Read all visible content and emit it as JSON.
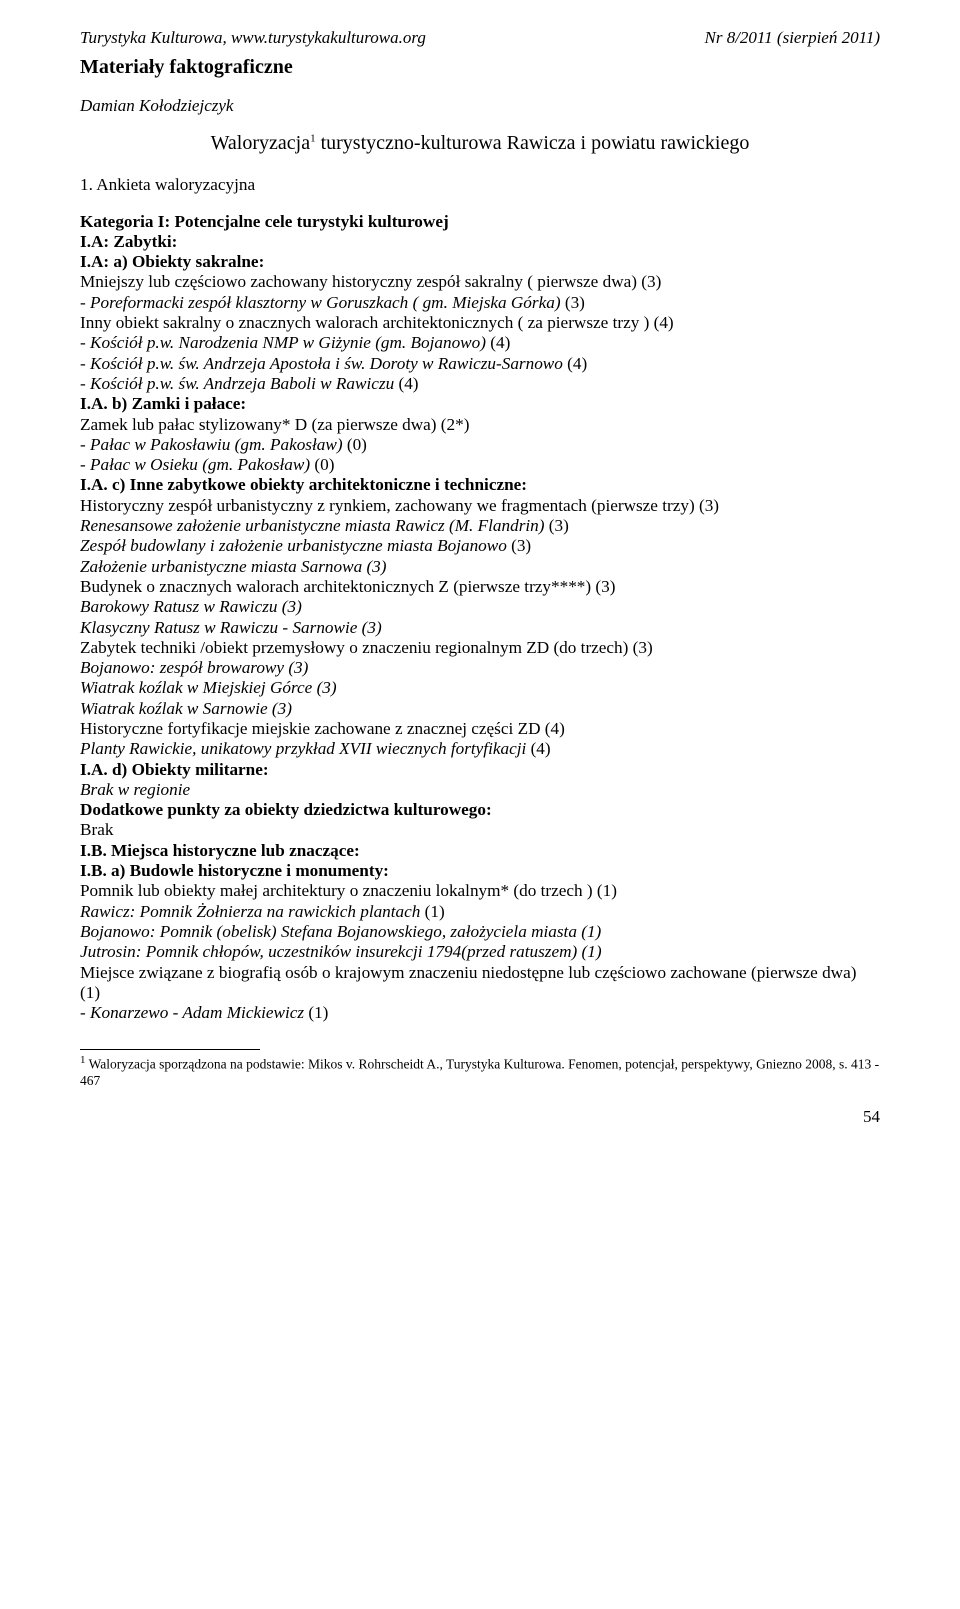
{
  "header": {
    "left": "Turystyka Kulturowa, www.turystykakulturowa.org",
    "right": "Nr 8/2011 (sierpień 2011)"
  },
  "section_title": "Materiały faktograficzne",
  "author": "Damian Kołodziejczyk",
  "main_title_a": "Waloryzacja",
  "main_title_sup": "1",
  "main_title_b": " turystyczno-kulturowa Rawicza i powiatu rawickiego",
  "survey_heading": "1. Ankieta waloryzacyjna",
  "lines": [
    {
      "t": "Kategoria I: Potencjalne cele turystyki kulturowej",
      "b": true
    },
    {
      "t": "I.A: Zabytki:",
      "b": true
    },
    {
      "t": "I.A: a) Obiekty sakralne:",
      "b": true
    },
    {
      "t": "Mniejszy lub częściowo zachowany historyczny zespół sakralny ( pierwsze dwa) (3)"
    },
    {
      "t": "- Poreformacki zespół klasztorny w Goruszkach ( gm. Miejska Górka) ",
      "i": true,
      "sfx": "(3)"
    },
    {
      "t": "Inny obiekt sakralny o znacznych walorach architektonicznych ( za pierwsze trzy ) (4)"
    },
    {
      "t": "- Kościół p.w. Narodzenia NMP w Giżynie (gm. Bojanowo) ",
      "i": true,
      "sfx": "(4)"
    },
    {
      "t": "- Kościół p.w. św. Andrzeja Apostoła i św. Doroty w Rawiczu-Sarnowo ",
      "i": true,
      "sfx": "(4)"
    },
    {
      "t": "- Kościół p.w. św. Andrzeja Baboli w Rawiczu ",
      "i": true,
      "sfx": "(4)"
    },
    {
      "t": "I.A. b) Zamki i pałace:",
      "b": true
    },
    {
      "t": "Zamek lub pałac stylizowany* D (za pierwsze dwa) (2*)"
    },
    {
      "t": "- Pałac w Pakosławiu (gm. Pakosław) ",
      "i": true,
      "sfx": "(0)"
    },
    {
      "t": "- Pałac w Osieku (gm. Pakosław) ",
      "i": true,
      "sfx": "(0)"
    },
    {
      "t": "I.A. c) Inne zabytkowe obiekty architektoniczne i techniczne:",
      "b": true
    },
    {
      "t": "Historyczny zespół urbanistyczny z rynkiem, zachowany we fragmentach (pierwsze trzy) (3)"
    },
    {
      "t": "Renesansowe założenie urbanistyczne miasta Rawicz (M. Flandrin) ",
      "i": true,
      "sfx": "(3)"
    },
    {
      "t": "Zespół budowlany i założenie urbanistyczne miasta Bojanowo ",
      "i": true,
      "sfx": "(3)"
    },
    {
      "t": "Założenie urbanistyczne miasta Sarnowa (3)",
      "i": true
    },
    {
      "t": "Budynek o znacznych walorach architektonicznych Z (pierwsze trzy****) (3)"
    },
    {
      "t": "Barokowy Ratusz w Rawiczu (3)",
      "i": true
    },
    {
      "t": "Klasyczny Ratusz w Rawiczu - Sarnowie (3)",
      "i": true
    },
    {
      "t": "Zabytek techniki /obiekt przemysłowy o znaczeniu regionalnym ZD (do trzech) (3)"
    },
    {
      "t": "Bojanowo: zespół browarowy (3)",
      "i": true
    },
    {
      "t": "Wiatrak koźlak w Miejskiej Górce (3)",
      "i": true
    },
    {
      "t": "Wiatrak koźlak w Sarnowie (3)",
      "i": true
    },
    {
      "t": "Historyczne fortyfikacje miejskie zachowane z znacznej części ZD (4)"
    },
    {
      "t": "Planty Rawickie, unikatowy przykład XVII wiecznych fortyfikacji ",
      "i": true,
      "sfx": "(4)"
    },
    {
      "t": "I.A. d) Obiekty militarne:",
      "b": true
    },
    {
      "t": "Brak w regionie",
      "i": true
    },
    {
      "t": "Dodatkowe punkty za obiekty dziedzictwa kulturowego:",
      "b": true
    },
    {
      "t": "Brak"
    },
    {
      "t": "I.B. Miejsca historyczne lub znaczące:",
      "b": true
    },
    {
      "t": "I.B. a) Budowle historyczne i monumenty:",
      "b": true
    },
    {
      "t": "Pomnik lub obiekty małej architektury o znaczeniu lokalnym* (do trzech ) (1)"
    },
    {
      "t": "Rawicz: Pomnik Żołnierza na rawickich plantach ",
      "i": true,
      "sfx": "(1)"
    },
    {
      "t": "Bojanowo: Pomnik (obelisk) Stefana Bojanowskiego, założyciela miasta (1)",
      "i": true
    },
    {
      "t": "Jutrosin: Pomnik chłopów, uczestników insurekcji 1794(przed ratuszem) (1)",
      "i": true
    },
    {
      "t": "Miejsce związane z biografią osób o krajowym znaczeniu niedostępne lub częściowo zachowane (pierwsze dwa) (1)"
    },
    {
      "t": "- Konarzewo - Adam Mickiewicz ",
      "i": true,
      "sfx": "(1)"
    }
  ],
  "footnote": {
    "num": "1",
    "text": " Waloryzacja sporządzona na podstawie: Mikos v. Rohrscheidt A., Turystyka Kulturowa. Fenomen, potencjał, perspektywy, Gniezno 2008, s. 413 - 467"
  },
  "page_number": "54"
}
